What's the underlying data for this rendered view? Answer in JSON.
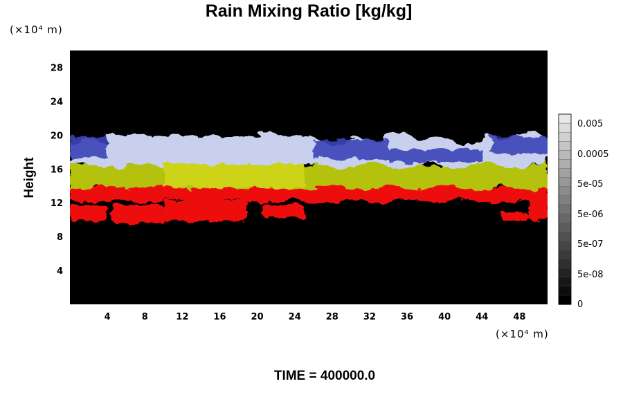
{
  "chart_data": {
    "type": "heatmap",
    "title": "Rain Mixing Ratio [kg/kg]",
    "ylabel": "Height",
    "x_unit": "(×10⁴ m)",
    "y_unit": "(×10⁴ m)",
    "xlim": [
      0,
      51
    ],
    "ylim": [
      0,
      30
    ],
    "x_ticks": [
      4,
      8,
      12,
      16,
      20,
      24,
      28,
      32,
      36,
      40,
      44,
      48
    ],
    "y_ticks": [
      4,
      8,
      12,
      16,
      20,
      24,
      28
    ],
    "background_color": "#000000",
    "grid": false,
    "colorbar": {
      "placement": "right",
      "labels": [
        "0.005",
        "0.0005",
        "5e-05",
        "5e-06",
        "5e-07",
        "5e-08",
        "0"
      ],
      "levels": 21
    },
    "layers": [
      {
        "color": "#ee1111",
        "y_bottom": 12.2,
        "y_top": 14.3
      },
      {
        "color": "#b5c20a",
        "y_bottom": 13.8,
        "y_top": 16.8
      },
      {
        "color": "#c8d0ee",
        "y_bottom": 16.4,
        "y_top": 19.6
      },
      {
        "color": "#3a44b8",
        "y_bottom": 16.8,
        "y_top": 19.8
      }
    ],
    "time_label": "TIME = 400000.0"
  }
}
